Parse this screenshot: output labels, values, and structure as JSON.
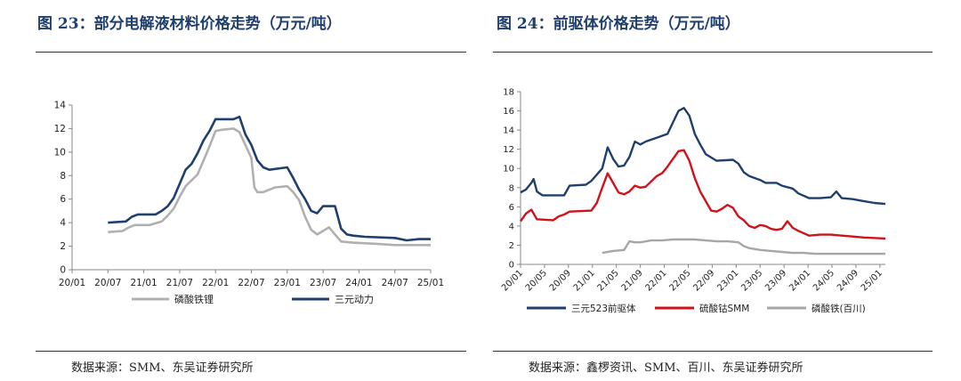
{
  "colors": {
    "title": "#1f3f6e",
    "lfp": "#b0b0b0",
    "ternary": "#1f3f6e",
    "precursor": "#1f3f6e",
    "cobalt": "#d0121b",
    "iron_phosphate": "#a6a6a6"
  },
  "panels": [
    {
      "title": "图 23：部分电解液材料价格走势（万元/吨）",
      "source": "数据来源：SMM、东吴证券研究所"
    },
    {
      "title": "图 24：前驱体价格走势（万元/吨）",
      "source": "数据来源：鑫椤资讯、SMM、百川、东吴证券研究所"
    }
  ],
  "chart_data": [
    {
      "type": "line",
      "title": "",
      "xlabel": "",
      "ylabel": "",
      "ylim": [
        0,
        14
      ],
      "yticks": [
        "0",
        "2",
        "4",
        "6",
        "8",
        "10",
        "12",
        "14"
      ],
      "xticks": [
        "20/01",
        "20/07",
        "21/01",
        "21/07",
        "22/01",
        "22/07",
        "23/01",
        "23/07",
        "24/01",
        "24/07",
        "25/01"
      ],
      "legend_position": "bottom",
      "grid": false,
      "series": [
        {
          "name": "磷酸铁锂",
          "color_key": "lfp",
          "points": [
            [
              6,
              3.2
            ],
            [
              8.5,
              3.3
            ],
            [
              9.5,
              3.6
            ],
            [
              10.5,
              3.8
            ],
            [
              13,
              3.8
            ],
            [
              15,
              4.1
            ],
            [
              16,
              4.6
            ],
            [
              17,
              5.2
            ],
            [
              18,
              6.2
            ],
            [
              19,
              7.1
            ],
            [
              20,
              7.6
            ],
            [
              21,
              8.1
            ],
            [
              22,
              9.3
            ],
            [
              23,
              10.5
            ],
            [
              24,
              11.8
            ],
            [
              25,
              11.9
            ],
            [
              27,
              12.0
            ],
            [
              28,
              11.7
            ],
            [
              29,
              10.6
            ],
            [
              30,
              9.5
            ],
            [
              30.5,
              7.0
            ],
            [
              31,
              6.6
            ],
            [
              32,
              6.6
            ],
            [
              33,
              6.8
            ],
            [
              34,
              7.0
            ],
            [
              36,
              7.1
            ],
            [
              37,
              6.6
            ],
            [
              38,
              5.9
            ],
            [
              39,
              4.5
            ],
            [
              40,
              3.4
            ],
            [
              41,
              3.0
            ],
            [
              43,
              3.6
            ],
            [
              44,
              3.0
            ],
            [
              45,
              2.4
            ],
            [
              47,
              2.3
            ],
            [
              51,
              2.2
            ],
            [
              54,
              2.1
            ],
            [
              58,
              2.1
            ],
            [
              60,
              2.1
            ]
          ]
        },
        {
          "name": "三元动力",
          "color_key": "ternary",
          "points": [
            [
              6,
              4.0
            ],
            [
              9,
              4.1
            ],
            [
              10,
              4.5
            ],
            [
              11,
              4.7
            ],
            [
              14,
              4.7
            ],
            [
              15,
              5.0
            ],
            [
              16,
              5.4
            ],
            [
              17,
              6.1
            ],
            [
              18,
              7.3
            ],
            [
              19,
              8.5
            ],
            [
              20,
              9.0
            ],
            [
              21,
              9.9
            ],
            [
              22,
              11.0
            ],
            [
              23,
              11.8
            ],
            [
              24,
              12.8
            ],
            [
              27,
              12.8
            ],
            [
              28,
              13.0
            ],
            [
              29,
              11.5
            ],
            [
              30,
              10.6
            ],
            [
              31,
              9.3
            ],
            [
              32,
              8.7
            ],
            [
              33,
              8.5
            ],
            [
              36,
              8.7
            ],
            [
              37,
              7.8
            ],
            [
              38,
              6.8
            ],
            [
              39,
              6.0
            ],
            [
              40,
              5.0
            ],
            [
              41,
              4.8
            ],
            [
              42,
              5.4
            ],
            [
              44,
              5.4
            ],
            [
              45,
              3.5
            ],
            [
              46,
              3.0
            ],
            [
              47,
              2.9
            ],
            [
              49,
              2.8
            ],
            [
              54,
              2.7
            ],
            [
              56,
              2.5
            ],
            [
              58,
              2.6
            ],
            [
              60,
              2.6
            ]
          ]
        }
      ]
    },
    {
      "type": "line",
      "title": "",
      "xlabel": "",
      "ylabel": "",
      "ylim": [
        0,
        18
      ],
      "yticks": [
        "0",
        "2",
        "4",
        "6",
        "8",
        "10",
        "12",
        "14",
        "16",
        "18"
      ],
      "xticks": [
        "20/01",
        "20/05",
        "20/09",
        "21/01",
        "21/05",
        "21/09",
        "22/01",
        "22/05",
        "22/09",
        "23/01",
        "23/05",
        "23/09",
        "24/01",
        "24/05",
        "24/09",
        "25/01"
      ],
      "legend_position": "bottom",
      "grid": false,
      "series": [
        {
          "name": "三元523前驱体",
          "color_key": "precursor",
          "points": [
            [
              0,
              7.5
            ],
            [
              1,
              7.8
            ],
            [
              2,
              8.5
            ],
            [
              2.4,
              8.9
            ],
            [
              3,
              7.6
            ],
            [
              4,
              7.2
            ],
            [
              8,
              7.2
            ],
            [
              9,
              8.2
            ],
            [
              12,
              8.3
            ],
            [
              13,
              8.7
            ],
            [
              15,
              10.0
            ],
            [
              16,
              12.2
            ],
            [
              17,
              11.0
            ],
            [
              18,
              10.2
            ],
            [
              19,
              10.3
            ],
            [
              20,
              11.2
            ],
            [
              21,
              12.8
            ],
            [
              22,
              12.5
            ],
            [
              23,
              12.8
            ],
            [
              25,
              13.2
            ],
            [
              27,
              13.6
            ],
            [
              28,
              14.8
            ],
            [
              29,
              16.0
            ],
            [
              30,
              16.3
            ],
            [
              31,
              15.5
            ],
            [
              32,
              13.6
            ],
            [
              33,
              12.5
            ],
            [
              34,
              11.5
            ],
            [
              36,
              10.8
            ],
            [
              39,
              10.9
            ],
            [
              40,
              10.5
            ],
            [
              41,
              9.6
            ],
            [
              42,
              9.2
            ],
            [
              44,
              8.8
            ],
            [
              45,
              8.5
            ],
            [
              47,
              8.5
            ],
            [
              48,
              8.2
            ],
            [
              50,
              7.9
            ],
            [
              51,
              7.4
            ],
            [
              53,
              6.9
            ],
            [
              55,
              6.9
            ],
            [
              57,
              7.0
            ],
            [
              58,
              7.6
            ],
            [
              59,
              6.9
            ],
            [
              61,
              6.8
            ],
            [
              63,
              6.6
            ],
            [
              65,
              6.4
            ],
            [
              67,
              6.3
            ]
          ]
        },
        {
          "name": "硫酸钴SMM",
          "color_key": "cobalt",
          "points": [
            [
              0,
              4.5
            ],
            [
              1,
              5.3
            ],
            [
              2,
              5.7
            ],
            [
              3,
              4.7
            ],
            [
              6,
              4.6
            ],
            [
              7,
              5.0
            ],
            [
              8,
              5.2
            ],
            [
              9,
              5.5
            ],
            [
              13,
              5.6
            ],
            [
              14,
              6.4
            ],
            [
              15,
              8.0
            ],
            [
              16,
              9.5
            ],
            [
              17,
              8.5
            ],
            [
              18,
              7.5
            ],
            [
              19,
              7.3
            ],
            [
              20,
              7.6
            ],
            [
              21,
              8.2
            ],
            [
              22,
              8.0
            ],
            [
              23,
              8.1
            ],
            [
              25,
              9.2
            ],
            [
              26,
              9.5
            ],
            [
              27,
              10.2
            ],
            [
              28,
              11.0
            ],
            [
              29,
              11.8
            ],
            [
              30,
              11.9
            ],
            [
              31,
              10.8
            ],
            [
              32,
              9.0
            ],
            [
              33,
              7.6
            ],
            [
              34,
              6.6
            ],
            [
              35,
              5.6
            ],
            [
              36,
              5.5
            ],
            [
              37,
              5.8
            ],
            [
              38,
              6.2
            ],
            [
              39,
              5.9
            ],
            [
              40,
              5.0
            ],
            [
              41,
              4.6
            ],
            [
              42,
              4.0
            ],
            [
              43,
              3.8
            ],
            [
              44,
              4.1
            ],
            [
              45,
              4.0
            ],
            [
              46,
              3.7
            ],
            [
              47,
              3.6
            ],
            [
              48,
              3.7
            ],
            [
              49,
              4.5
            ],
            [
              50,
              3.8
            ],
            [
              51,
              3.5
            ],
            [
              53,
              3.0
            ],
            [
              55,
              3.1
            ],
            [
              57,
              3.1
            ],
            [
              59,
              3.0
            ],
            [
              61,
              2.9
            ],
            [
              63,
              2.8
            ],
            [
              67,
              2.7
            ]
          ]
        },
        {
          "name": "磷酸铁(百川)",
          "color_key": "iron_phosphate",
          "points": [
            [
              15,
              1.2
            ],
            [
              17,
              1.4
            ],
            [
              19,
              1.5
            ],
            [
              20,
              2.4
            ],
            [
              21,
              2.3
            ],
            [
              22,
              2.3
            ],
            [
              24,
              2.5
            ],
            [
              26,
              2.5
            ],
            [
              28,
              2.6
            ],
            [
              30,
              2.6
            ],
            [
              32,
              2.6
            ],
            [
              34,
              2.5
            ],
            [
              36,
              2.4
            ],
            [
              38,
              2.4
            ],
            [
              40,
              2.3
            ],
            [
              41,
              1.9
            ],
            [
              42,
              1.7
            ],
            [
              44,
              1.5
            ],
            [
              46,
              1.4
            ],
            [
              48,
              1.3
            ],
            [
              50,
              1.2
            ],
            [
              52,
              1.2
            ],
            [
              54,
              1.1
            ],
            [
              56,
              1.1
            ],
            [
              58,
              1.1
            ],
            [
              60,
              1.1
            ],
            [
              62,
              1.1
            ],
            [
              67,
              1.1
            ]
          ]
        }
      ]
    }
  ]
}
